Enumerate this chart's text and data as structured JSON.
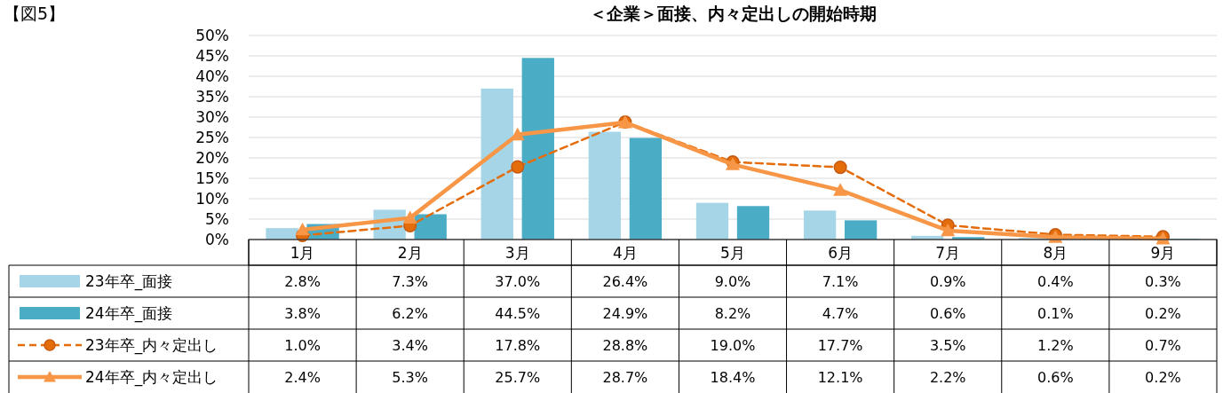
{
  "chart_data": {
    "type": "bar",
    "title": "＜企業＞面接、内々定出しの開始時期",
    "annotations": [
      "【図5】"
    ],
    "categories": [
      "1月",
      "2月",
      "3月",
      "4月",
      "5月",
      "6月",
      "7月",
      "8月",
      "9月"
    ],
    "ylim": [
      0,
      50
    ],
    "yticks": [
      {
        "value": 0,
        "label": "0%"
      },
      {
        "value": 5,
        "label": "5%"
      },
      {
        "value": 10,
        "label": "10%"
      },
      {
        "value": 15,
        "label": "15%"
      },
      {
        "value": 20,
        "label": "20%"
      },
      {
        "value": 25,
        "label": "25%"
      },
      {
        "value": 30,
        "label": "30%"
      },
      {
        "value": 35,
        "label": "35%"
      },
      {
        "value": 40,
        "label": "40%"
      },
      {
        "value": 45,
        "label": "45%"
      },
      {
        "value": 50,
        "label": "50%"
      }
    ],
    "grid": "y",
    "data_labels": true,
    "legend": "bottom",
    "series": [
      {
        "name": "23年卒_面接",
        "color": "#a5d5e6",
        "values": [
          2.8,
          7.3,
          37.0,
          26.4,
          9.0,
          7.1,
          0.9,
          0.4,
          0.3
        ],
        "value_labels": [
          "2.8%",
          "7.3%",
          "37.0%",
          "26.4%",
          "9.0%",
          "7.1%",
          "0.9%",
          "0.4%",
          "0.3%"
        ]
      },
      {
        "name": "24年卒_面接",
        "color": "#4bacc6",
        "values": [
          3.8,
          6.2,
          44.5,
          24.9,
          8.2,
          4.7,
          0.6,
          0.1,
          0.2
        ],
        "value_labels": [
          "3.8%",
          "6.2%",
          "44.5%",
          "24.9%",
          "8.2%",
          "4.7%",
          "0.6%",
          "0.1%",
          "0.2%"
        ]
      },
      {
        "name": "23年卒_内々定出し",
        "type": "line",
        "color": "#e46c0a",
        "marker": "circle",
        "line_style": "dashed",
        "values": [
          1.0,
          3.4,
          17.8,
          28.8,
          19.0,
          17.7,
          3.5,
          1.2,
          0.7
        ],
        "value_labels": [
          "1.0%",
          "3.4%",
          "17.8%",
          "28.8%",
          "19.0%",
          "17.7%",
          "3.5%",
          "1.2%",
          "0.7%"
        ]
      },
      {
        "name": "24年卒_内々定出し",
        "type": "line",
        "color": "#f79646",
        "marker": "triangle",
        "line_style": "solid",
        "values": [
          2.4,
          5.3,
          25.7,
          28.7,
          18.4,
          12.1,
          2.2,
          0.6,
          0.2
        ],
        "value_labels": [
          "2.4%",
          "5.3%",
          "25.7%",
          "28.7%",
          "18.4%",
          "12.1%",
          "2.2%",
          "0.6%",
          "0.2%"
        ]
      }
    ]
  }
}
